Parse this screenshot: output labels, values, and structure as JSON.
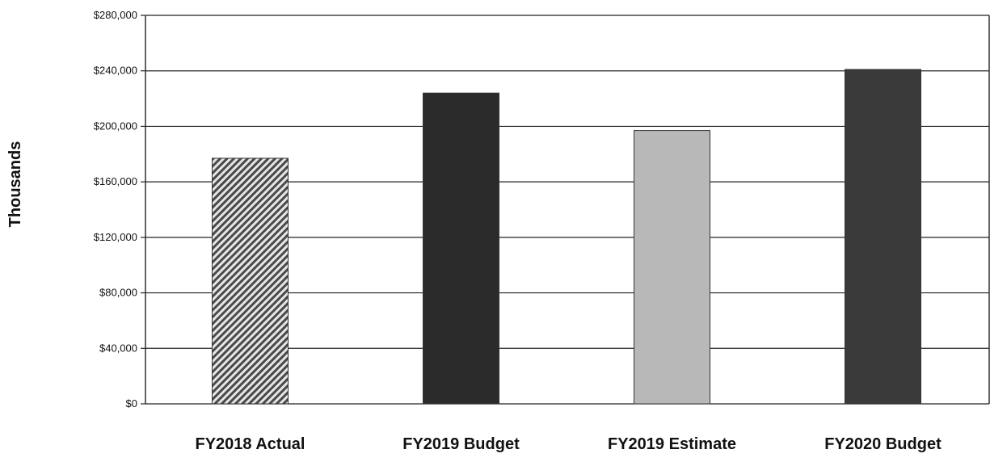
{
  "chart_data": {
    "type": "bar",
    "title": "",
    "xlabel": "",
    "ylabel": "Thousands",
    "categories": [
      "FY2018 Actual",
      "FY2019 Budget",
      "FY2019 Estimate",
      "FY2020 Budget"
    ],
    "values": [
      177000,
      224000,
      197000,
      241000
    ],
    "ylim": [
      0,
      280000
    ],
    "yticks": [
      0,
      40000,
      80000,
      120000,
      160000,
      200000,
      240000,
      280000
    ],
    "ytick_labels": [
      "$0",
      "$40,000",
      "$80,000",
      "$120,000",
      "$160,000",
      "$200,000",
      "$240,000",
      "$280,000"
    ],
    "grid": true,
    "legend": "none",
    "bar_styles": [
      {
        "fill": "hatched",
        "color": "#555555"
      },
      {
        "fill": "solid",
        "color": "#2b2b2b"
      },
      {
        "fill": "solid",
        "color": "#b8b8b8"
      },
      {
        "fill": "solid",
        "color": "#3a3a3a"
      }
    ]
  }
}
